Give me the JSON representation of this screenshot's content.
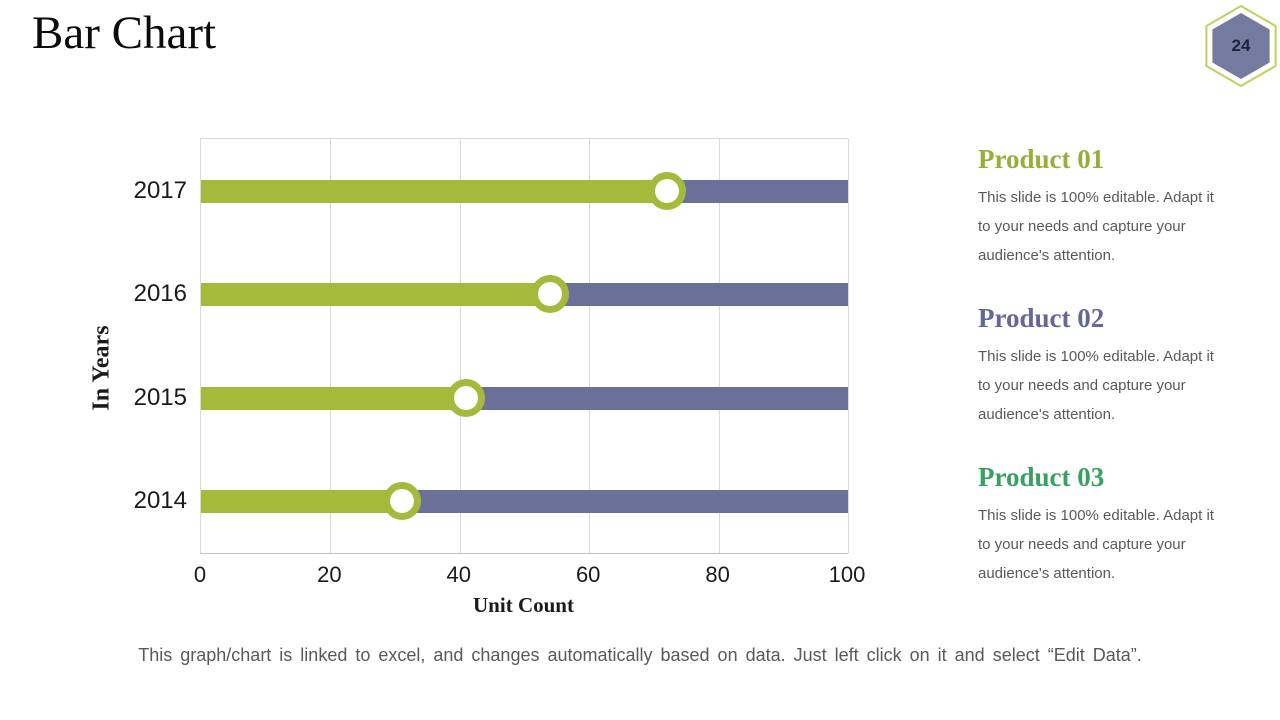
{
  "slide": {
    "title": "Bar Chart",
    "page_number": "24",
    "footer": "This graph/chart is linked to excel, and changes automatically based on data. Just left click on it and select “Edit Data”."
  },
  "chart_data": {
    "type": "bar",
    "orientation": "horizontal",
    "categories": [
      "2017",
      "2016",
      "2015",
      "2014"
    ],
    "series": [
      {
        "name": "value (green segment with open-circle marker)",
        "color": "#a5b93b",
        "values": [
          72,
          54,
          41,
          31
        ]
      },
      {
        "name": "full track (purple background bar)",
        "color": "#6b7099",
        "values": [
          100,
          100,
          100,
          100
        ]
      }
    ],
    "xlabel": "Unit Count",
    "ylabel": "In Years",
    "xlim": [
      0,
      100
    ],
    "xticks": [
      0,
      20,
      40,
      60,
      80,
      100
    ],
    "grid": true,
    "legend": "none",
    "marker": "open-circle-at-value"
  },
  "colors": {
    "bar_green": "#a5b93b",
    "bar_purple": "#6b7099",
    "product1_heading": "#9cac3a",
    "product2_heading": "#636995",
    "product3_heading": "#36a163",
    "hexagon_fill": "#757b9e",
    "hexagon_outline": "#c2cf63",
    "gridline": "#d9d9d9",
    "body_text": "#595959"
  },
  "products": [
    {
      "title": "Product 01",
      "description": "This slide is 100% editable. Adapt it to your needs and capture your audience's attention."
    },
    {
      "title": "Product 02",
      "description": "This slide is 100% editable. Adapt it to your needs and capture your audience's attention."
    },
    {
      "title": "Product 03",
      "description": "This slide is 100% editable. Adapt it to your needs and capture your audience's attention."
    }
  ]
}
